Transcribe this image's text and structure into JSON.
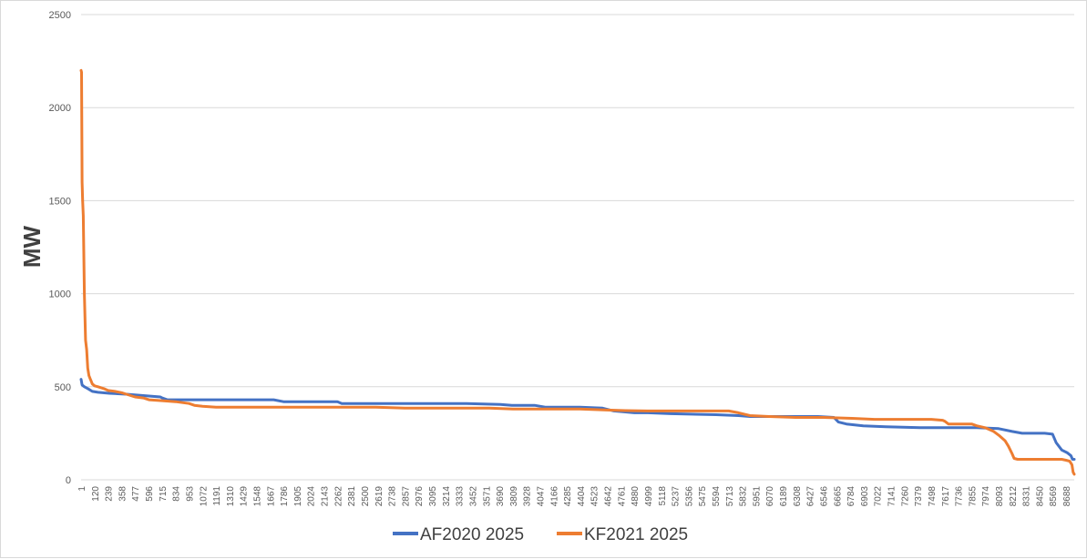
{
  "chart_data": {
    "type": "line",
    "title": "",
    "xlabel": "",
    "ylabel": "MW",
    "ylim": [
      0,
      2500
    ],
    "yticks": [
      0,
      500,
      1000,
      1500,
      2000,
      2500
    ],
    "xlim": [
      1,
      8760
    ],
    "xticks": [
      1,
      120,
      239,
      358,
      477,
      596,
      715,
      834,
      953,
      1072,
      1191,
      1310,
      1429,
      1548,
      1667,
      1786,
      1905,
      2024,
      2143,
      2262,
      2381,
      2500,
      2619,
      2738,
      2857,
      2976,
      3095,
      3214,
      3333,
      3452,
      3571,
      3690,
      3809,
      3928,
      4047,
      4166,
      4285,
      4404,
      4523,
      4642,
      4761,
      4880,
      4999,
      5118,
      5237,
      5356,
      5475,
      5594,
      5713,
      5832,
      5951,
      6070,
      6189,
      6308,
      6427,
      6546,
      6665,
      6784,
      6903,
      7022,
      7141,
      7260,
      7379,
      7498,
      7617,
      7736,
      7855,
      7974,
      8093,
      8212,
      8331,
      8450,
      8569,
      8688
    ],
    "grid": true,
    "legend": "bottom",
    "series": [
      {
        "name": "AF2020 2025",
        "color": "#4472c4",
        "x": [
          1,
          10,
          30,
          60,
          100,
          150,
          250,
          400,
          500,
          600,
          700,
          715,
          760,
          850,
          1000,
          1200,
          1500,
          1700,
          1786,
          2000,
          2262,
          2300,
          2600,
          3000,
          3400,
          3700,
          3800,
          4000,
          4100,
          4400,
          4600,
          4700,
          4880,
          5000,
          5200,
          5600,
          5800,
          5900,
          6200,
          6500,
          6640,
          6680,
          6750,
          6900,
          7100,
          7400,
          7700,
          7900,
          8093,
          8212,
          8300,
          8500,
          8569,
          8600,
          8650,
          8700,
          8730,
          8745,
          8760
        ],
        "y": [
          540,
          510,
          500,
          490,
          475,
          470,
          465,
          460,
          455,
          450,
          445,
          440,
          430,
          430,
          430,
          430,
          430,
          430,
          420,
          420,
          420,
          410,
          410,
          410,
          410,
          405,
          400,
          400,
          390,
          390,
          385,
          370,
          360,
          360,
          355,
          350,
          345,
          340,
          340,
          340,
          335,
          310,
          300,
          290,
          285,
          280,
          280,
          280,
          275,
          260,
          250,
          250,
          245,
          200,
          160,
          145,
          130,
          110,
          110
        ]
      },
      {
        "name": "KF2021 2025",
        "color": "#ed7d31",
        "x": [
          1,
          5,
          10,
          15,
          20,
          30,
          40,
          50,
          60,
          70,
          80,
          90,
          100,
          120,
          150,
          200,
          239,
          300,
          358,
          400,
          477,
          550,
          600,
          715,
          834,
          953,
          1000,
          1072,
          1191,
          1400,
          1800,
          2200,
          2600,
          2857,
          3200,
          3600,
          3809,
          4000,
          4400,
          4642,
          4800,
          5000,
          5400,
          5713,
          5800,
          5900,
          6070,
          6300,
          6546,
          6800,
          7000,
          7300,
          7500,
          7600,
          7617,
          7650,
          7736,
          7855,
          7900,
          7974,
          8050,
          8093,
          8150,
          8180,
          8212,
          8230,
          8260,
          8331,
          8450,
          8569,
          8650,
          8688,
          8720,
          8740,
          8750,
          8760
        ],
        "y": [
          2200,
          2190,
          1600,
          1500,
          1420,
          1000,
          750,
          700,
          600,
          560,
          545,
          530,
          515,
          505,
          500,
          490,
          480,
          475,
          468,
          460,
          445,
          440,
          430,
          425,
          420,
          410,
          400,
          395,
          390,
          390,
          390,
          390,
          390,
          385,
          385,
          385,
          380,
          380,
          380,
          375,
          372,
          370,
          370,
          370,
          360,
          345,
          340,
          335,
          335,
          330,
          325,
          325,
          325,
          320,
          315,
          300,
          300,
          300,
          290,
          280,
          260,
          240,
          210,
          180,
          140,
          115,
          110,
          110,
          110,
          110,
          110,
          105,
          100,
          80,
          40,
          30
        ]
      }
    ]
  }
}
